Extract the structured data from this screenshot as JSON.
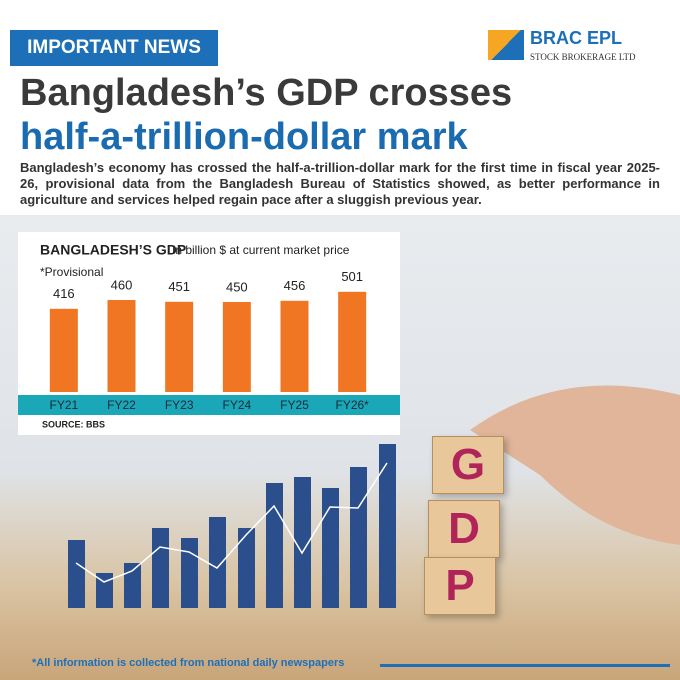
{
  "badge": "IMPORTANT NEWS",
  "brand": {
    "name": "BRAC EPL",
    "tagline": "STOCK BROKERAGE LTD"
  },
  "headline": {
    "line1": "Bangladesh’s GDP crosses",
    "line2": "half-a-trillion-dollar mark"
  },
  "body": "Bangladesh’s economy has crossed the half-a-trillion-dollar mark for the first time in fiscal year 2025-26, provisional data from the Bangladesh Bureau of Statistics showed, as better performance in agriculture and services helped regain pace after a sluggish previous year.",
  "chart_data": {
    "type": "bar",
    "title": "BANGLADESH’S GDP",
    "subtitle": "In billion $ at current market price",
    "note": "*Provisional",
    "source": "SOURCE: BBS",
    "categories": [
      "FY21",
      "FY22",
      "FY23",
      "FY24",
      "FY25",
      "FY26*"
    ],
    "values": [
      416,
      460,
      451,
      450,
      456,
      501
    ],
    "color": "#f07623",
    "ylim": [
      0,
      660
    ]
  },
  "cubes": [
    "G",
    "D",
    "P"
  ],
  "footer": "*All information is collected from national daily newspapers"
}
